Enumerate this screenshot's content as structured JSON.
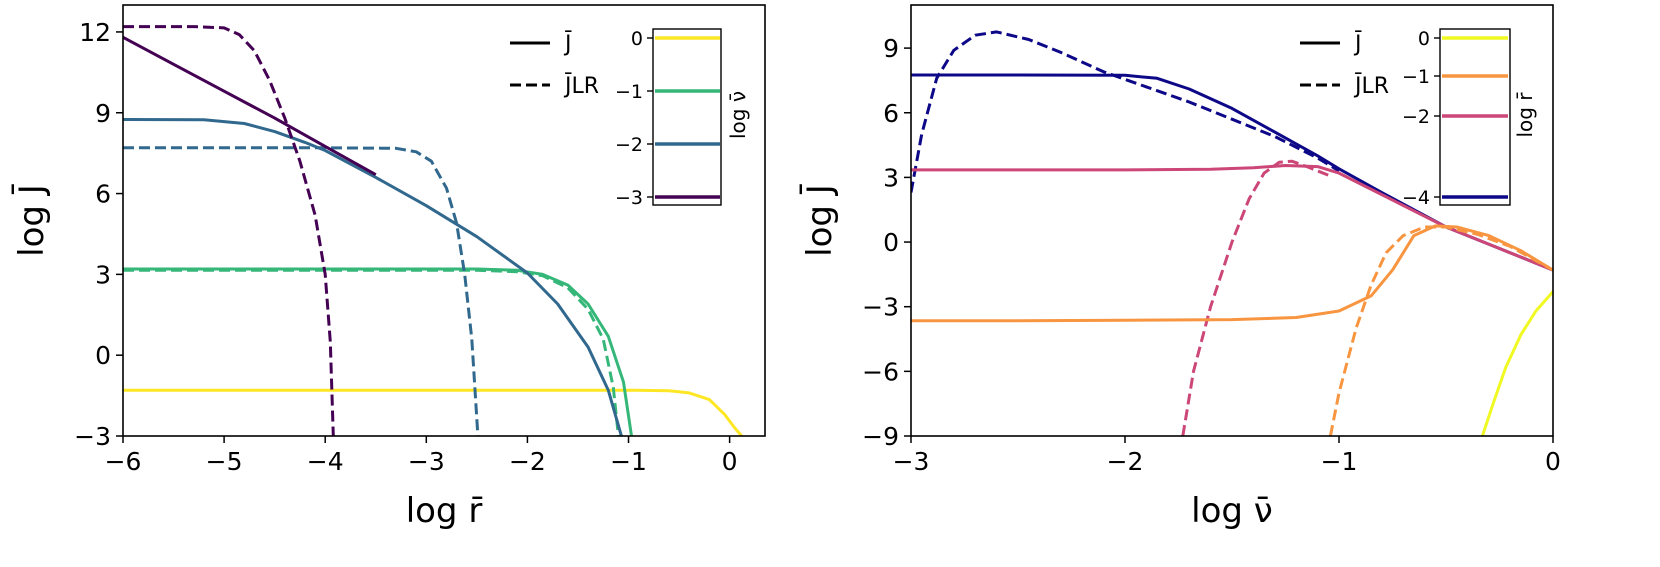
{
  "chart_data": [
    {
      "type": "line",
      "xlabel": "log r̄",
      "ylabel": "log J̄",
      "xlim": [
        -6,
        0.35
      ],
      "ylim": [
        -3,
        13
      ],
      "xticks": [
        -6,
        -5,
        -4,
        -3,
        -2,
        -1,
        0
      ],
      "yticks": [
        -3,
        0,
        3,
        6,
        9,
        12
      ],
      "xtick_labels": [
        "−6",
        "−5",
        "−4",
        "−3",
        "−2",
        "−1",
        "0"
      ],
      "ytick_labels": [
        "−3",
        "0",
        "3",
        "6",
        "9",
        "12"
      ],
      "legend": {
        "location": "top-center",
        "entries": [
          {
            "label": "J̄",
            "style": "solid"
          },
          {
            "label": "J̄LR",
            "style": "dashed"
          }
        ]
      },
      "colorbar": {
        "label": "log ν̄",
        "ticks": [
          "0",
          "−1",
          "−2",
          "−3"
        ],
        "colors": [
          "#fde725",
          "#35b779",
          "#31688e",
          "#440154"
        ]
      },
      "series": [
        {
          "param": "0",
          "style": "solid",
          "color": "#fde725",
          "points": [
            [
              -6,
              -1.3
            ],
            [
              -5,
              -1.3
            ],
            [
              -4,
              -1.3
            ],
            [
              -3,
              -1.3
            ],
            [
              -2,
              -1.3
            ],
            [
              -1,
              -1.3
            ],
            [
              -0.6,
              -1.32
            ],
            [
              -0.4,
              -1.4
            ],
            [
              -0.2,
              -1.65
            ],
            [
              -0.05,
              -2.2
            ],
            [
              0.05,
              -2.7
            ],
            [
              0.12,
              -3.0
            ]
          ]
        },
        {
          "param": "−1",
          "style": "solid",
          "color": "#35b779",
          "points": [
            [
              -6,
              3.2
            ],
            [
              -5,
              3.2
            ],
            [
              -4,
              3.2
            ],
            [
              -3,
              3.2
            ],
            [
              -2.5,
              3.2
            ],
            [
              -2.1,
              3.15
            ],
            [
              -1.85,
              3.0
            ],
            [
              -1.6,
              2.6
            ],
            [
              -1.4,
              1.9
            ],
            [
              -1.2,
              0.7
            ],
            [
              -1.05,
              -1.0
            ],
            [
              -0.97,
              -3.0
            ]
          ]
        },
        {
          "param": "−1",
          "style": "dashed",
          "color": "#35b779",
          "points": [
            [
              -6,
              3.15
            ],
            [
              -5,
              3.15
            ],
            [
              -4,
              3.15
            ],
            [
              -3,
              3.15
            ],
            [
              -2.5,
              3.15
            ],
            [
              -2.1,
              3.1
            ],
            [
              -1.85,
              2.95
            ],
            [
              -1.6,
              2.5
            ],
            [
              -1.4,
              1.7
            ],
            [
              -1.25,
              0.6
            ],
            [
              -1.15,
              -1.2
            ],
            [
              -1.1,
              -3.0
            ]
          ]
        },
        {
          "param": "−2",
          "style": "solid",
          "color": "#31688e",
          "points": [
            [
              -6,
              8.75
            ],
            [
              -5.2,
              8.74
            ],
            [
              -4.8,
              8.6
            ],
            [
              -4.5,
              8.3
            ],
            [
              -4.2,
              7.9
            ],
            [
              -4,
              7.6
            ],
            [
              -3.5,
              6.6
            ],
            [
              -3,
              5.55
            ],
            [
              -2.5,
              4.4
            ],
            [
              -2,
              3.05
            ],
            [
              -1.7,
              1.9
            ],
            [
              -1.4,
              0.3
            ],
            [
              -1.2,
              -1.3
            ],
            [
              -1.07,
              -3.0
            ]
          ]
        },
        {
          "param": "−2",
          "style": "dashed",
          "color": "#31688e",
          "points": [
            [
              -6,
              7.7
            ],
            [
              -4,
              7.7
            ],
            [
              -3.3,
              7.68
            ],
            [
              -3.1,
              7.55
            ],
            [
              -2.95,
              7.2
            ],
            [
              -2.8,
              6.2
            ],
            [
              -2.7,
              4.9
            ],
            [
              -2.62,
              3.0
            ],
            [
              -2.55,
              0.6
            ],
            [
              -2.49,
              -3.0
            ]
          ]
        },
        {
          "param": "−3",
          "style": "solid",
          "color": "#440154",
          "points": [
            [
              -6,
              11.8
            ],
            [
              -5.5,
              10.8
            ],
            [
              -5,
              9.8
            ],
            [
              -4.5,
              8.8
            ],
            [
              -4,
              7.75
            ],
            [
              -3.5,
              6.7
            ]
          ]
        },
        {
          "param": "−3",
          "style": "dashed",
          "color": "#440154",
          "points": [
            [
              -6,
              12.2
            ],
            [
              -5.3,
              12.2
            ],
            [
              -5.0,
              12.15
            ],
            [
              -4.85,
              11.9
            ],
            [
              -4.7,
              11.3
            ],
            [
              -4.55,
              10.2
            ],
            [
              -4.4,
              8.8
            ],
            [
              -4.25,
              7.2
            ],
            [
              -4.1,
              5.2
            ],
            [
              -4.0,
              3.0
            ],
            [
              -3.95,
              0.5
            ],
            [
              -3.92,
              -3.0
            ]
          ]
        }
      ]
    },
    {
      "type": "line",
      "xlabel": "log ν̄",
      "ylabel": "log J̄",
      "xlim": [
        -3,
        0
      ],
      "ylim": [
        -9,
        11
      ],
      "xticks": [
        -3,
        -2,
        -1,
        0
      ],
      "yticks": [
        -9,
        -6,
        -3,
        0,
        3,
        6,
        9
      ],
      "xtick_labels": [
        "−3",
        "−2",
        "−1",
        "0"
      ],
      "ytick_labels": [
        "−9",
        "−6",
        "−3",
        "0",
        "3",
        "6",
        "9"
      ],
      "legend": {
        "location": "top-center",
        "entries": [
          {
            "label": "J̄",
            "style": "solid"
          },
          {
            "label": "J̄LR",
            "style": "dashed"
          }
        ]
      },
      "colorbar": {
        "label": "log r̄",
        "ticks": [
          "0",
          "−1",
          "−2",
          "−4"
        ],
        "colors": [
          "#f0f921",
          "#f89540",
          "#cc4778",
          "#0d0887"
        ]
      },
      "series": [
        {
          "param": "−4",
          "style": "solid",
          "color": "#0d0887",
          "points": [
            [
              -3,
              7.75
            ],
            [
              -2.5,
              7.75
            ],
            [
              -2.0,
              7.74
            ],
            [
              -1.85,
              7.6
            ],
            [
              -1.7,
              7.1
            ],
            [
              -1.5,
              6.2
            ],
            [
              -1.3,
              5.1
            ],
            [
              -1.1,
              4.0
            ],
            [
              -1.0,
              3.4
            ],
            [
              -0.8,
              2.3
            ],
            [
              -0.5,
              0.7
            ],
            [
              -0.25,
              -0.3
            ],
            [
              0,
              -1.3
            ]
          ]
        },
        {
          "param": "−4",
          "style": "dashed",
          "color": "#0d0887",
          "points": [
            [
              -3,
              2.3
            ],
            [
              -2.95,
              5.0
            ],
            [
              -2.88,
              7.6
            ],
            [
              -2.8,
              8.9
            ],
            [
              -2.7,
              9.6
            ],
            [
              -2.6,
              9.75
            ],
            [
              -2.45,
              9.4
            ],
            [
              -2.3,
              8.8
            ],
            [
              -2.1,
              7.9
            ],
            [
              -1.9,
              7.2
            ],
            [
              -1.7,
              6.5
            ],
            [
              -1.5,
              5.7
            ],
            [
              -1.3,
              4.9
            ],
            [
              -1.1,
              3.9
            ],
            [
              -1.0,
              3.3
            ]
          ]
        },
        {
          "param": "−2",
          "style": "solid",
          "color": "#cc4778",
          "points": [
            [
              -3,
              3.35
            ],
            [
              -2.5,
              3.35
            ],
            [
              -2.0,
              3.35
            ],
            [
              -1.6,
              3.38
            ],
            [
              -1.4,
              3.45
            ],
            [
              -1.25,
              3.55
            ],
            [
              -1.1,
              3.5
            ],
            [
              -1.0,
              3.2
            ],
            [
              -0.8,
              2.2
            ],
            [
              -0.5,
              0.7
            ],
            [
              -0.25,
              -0.3
            ],
            [
              0,
              -1.3
            ]
          ]
        },
        {
          "param": "−2",
          "style": "dashed",
          "color": "#cc4778",
          "points": [
            [
              -1.73,
              -9
            ],
            [
              -1.68,
              -6.0
            ],
            [
              -1.6,
              -3.0
            ],
            [
              -1.5,
              0.0
            ],
            [
              -1.42,
              2.0
            ],
            [
              -1.35,
              3.2
            ],
            [
              -1.28,
              3.7
            ],
            [
              -1.22,
              3.75
            ],
            [
              -1.15,
              3.5
            ],
            [
              -1.05,
              3.1
            ]
          ]
        },
        {
          "param": "−1",
          "style": "solid",
          "color": "#f89540",
          "points": [
            [
              -3,
              -3.65
            ],
            [
              -2.5,
              -3.65
            ],
            [
              -2.0,
              -3.63
            ],
            [
              -1.5,
              -3.6
            ],
            [
              -1.2,
              -3.5
            ],
            [
              -1.0,
              -3.2
            ],
            [
              -0.85,
              -2.5
            ],
            [
              -0.75,
              -1.3
            ],
            [
              -0.65,
              0.3
            ],
            [
              -0.55,
              0.75
            ],
            [
              -0.45,
              0.7
            ],
            [
              -0.3,
              0.3
            ],
            [
              -0.15,
              -0.4
            ],
            [
              0,
              -1.3
            ]
          ]
        },
        {
          "param": "−1",
          "style": "dashed",
          "color": "#f89540",
          "points": [
            [
              -1.04,
              -9
            ],
            [
              -1.0,
              -7.0
            ],
            [
              -0.92,
              -4.0
            ],
            [
              -0.85,
              -2.0
            ],
            [
              -0.78,
              -0.5
            ],
            [
              -0.7,
              0.3
            ],
            [
              -0.6,
              0.7
            ],
            [
              -0.5,
              0.7
            ],
            [
              -0.35,
              0.35
            ],
            [
              -0.2,
              -0.2
            ],
            [
              0,
              -1.3
            ]
          ]
        },
        {
          "param": "0",
          "style": "solid",
          "color": "#f0f921",
          "points": [
            [
              -0.33,
              -9
            ],
            [
              -0.28,
              -7.5
            ],
            [
              -0.22,
              -5.8
            ],
            [
              -0.15,
              -4.3
            ],
            [
              -0.08,
              -3.2
            ],
            [
              0,
              -2.3
            ]
          ]
        }
      ]
    }
  ]
}
